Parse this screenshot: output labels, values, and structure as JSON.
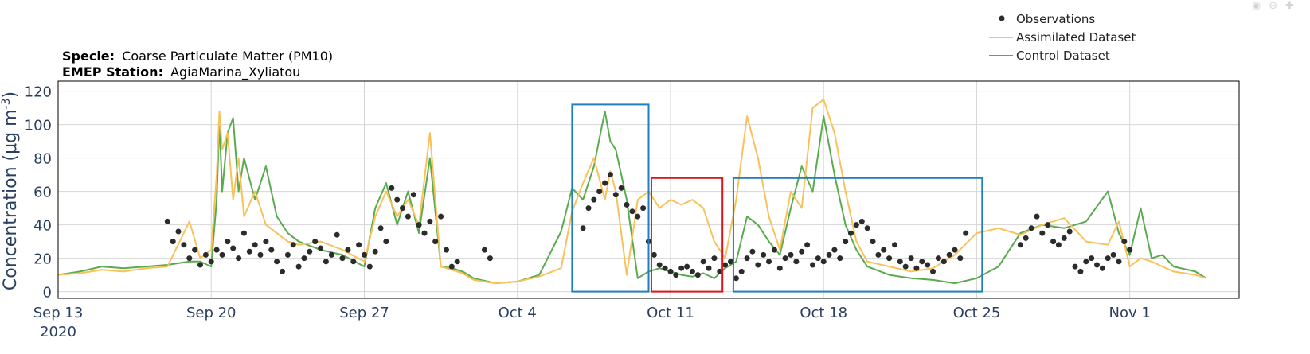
{
  "header": {
    "specie_label": "Specie:",
    "specie_value": "Coarse Particulate Matter (PM10)",
    "station_label": "EMEP Station:",
    "station_value": "AgiaMarina_Xyliatou"
  },
  "modebar": {
    "icons": [
      "camera-icon",
      "zoom-icon",
      "pan-icon",
      "home-icon"
    ]
  },
  "colors": {
    "observations": "#2b2b2b",
    "assimilated": "#f9c15a",
    "control": "#5aab4f",
    "highlight_blue": "#1f7fbf",
    "highlight_red": "#e0141e",
    "grid": "#d6d6d6",
    "axis_text": "#2a3f5f"
  },
  "chart_data": {
    "type": "line",
    "title": "",
    "xlabel": "",
    "ylabel": "Concentration (μg m⁻³)",
    "ylabel_main": "Concentration (μg m",
    "ylabel_sup": "-3",
    "ylabel_end": ")",
    "xlim": [
      "2020-09-13",
      "2020-11-06"
    ],
    "ylim": [
      -4,
      126
    ],
    "x_ticks": [
      {
        "date": "2020-09-13",
        "label": "Sep 13",
        "sublabel": "2020"
      },
      {
        "date": "2020-09-20",
        "label": "Sep 20"
      },
      {
        "date": "2020-09-27",
        "label": "Sep 27"
      },
      {
        "date": "2020-10-04",
        "label": "Oct 4"
      },
      {
        "date": "2020-10-11",
        "label": "Oct 11"
      },
      {
        "date": "2020-10-18",
        "label": "Oct 18"
      },
      {
        "date": "2020-10-25",
        "label": "Oct 25"
      },
      {
        "date": "2020-11-01",
        "label": "Nov 1"
      }
    ],
    "y_ticks": [
      0,
      20,
      40,
      60,
      80,
      100,
      120
    ],
    "grid": true,
    "legend_position": "top-right",
    "legend": [
      {
        "name": "Observations",
        "style": "marker"
      },
      {
        "name": "Assimilated Dataset",
        "style": "line"
      },
      {
        "name": "Control Dataset",
        "style": "line"
      }
    ],
    "highlight_boxes": [
      {
        "color": "blue",
        "x0": "2020-10-06 12:00",
        "x1": "2020-10-10 00:00",
        "y0": 0,
        "y1": 112
      },
      {
        "color": "red",
        "x0": "2020-10-10 03:00",
        "x1": "2020-10-13 09:00",
        "y0": 0,
        "y1": 68
      },
      {
        "color": "blue",
        "x0": "2020-10-13 21:00",
        "x1": "2020-10-25 06:00",
        "y0": 0,
        "y1": 68
      }
    ],
    "series": [
      {
        "name": "Control Dataset",
        "x": [
          "2020-09-13",
          "2020-09-14",
          "2020-09-15",
          "2020-09-16",
          "2020-09-17",
          "2020-09-18",
          "2020-09-19",
          "2020-09-19 12:00",
          "2020-09-20",
          "2020-09-20 06:00",
          "2020-09-20 09:00",
          "2020-09-20 12:00",
          "2020-09-20 18:00",
          "2020-09-21",
          "2020-09-21 06:00",
          "2020-09-21 12:00",
          "2020-09-22",
          "2020-09-22 12:00",
          "2020-09-23",
          "2020-09-23 12:00",
          "2020-09-24",
          "2020-09-25",
          "2020-09-26",
          "2020-09-27",
          "2020-09-27 12:00",
          "2020-09-28",
          "2020-09-28 12:00",
          "2020-09-29",
          "2020-09-29 12:00",
          "2020-09-30",
          "2020-09-30 12:00",
          "2020-10-01",
          "2020-10-01 12:00",
          "2020-10-02",
          "2020-10-03",
          "2020-10-04",
          "2020-10-05",
          "2020-10-06",
          "2020-10-06 12:00",
          "2020-10-07",
          "2020-10-07 12:00",
          "2020-10-08",
          "2020-10-08 06:00",
          "2020-10-08 12:00",
          "2020-10-09",
          "2020-10-09 12:00",
          "2020-10-10",
          "2020-10-10 12:00",
          "2020-10-11",
          "2020-10-11 12:00",
          "2020-10-12",
          "2020-10-12 12:00",
          "2020-10-13",
          "2020-10-13 12:00",
          "2020-10-14",
          "2020-10-14 12:00",
          "2020-10-15",
          "2020-10-15 12:00",
          "2020-10-16",
          "2020-10-16 12:00",
          "2020-10-17",
          "2020-10-17 12:00",
          "2020-10-18",
          "2020-10-18 12:00",
          "2020-10-19",
          "2020-10-19 12:00",
          "2020-10-20",
          "2020-10-21",
          "2020-10-22",
          "2020-10-23",
          "2020-10-24",
          "2020-10-25",
          "2020-10-26",
          "2020-10-27",
          "2020-10-28",
          "2020-10-29",
          "2020-10-30",
          "2020-10-31",
          "2020-10-31 12:00",
          "2020-11-01",
          "2020-11-01 12:00",
          "2020-11-02",
          "2020-11-02 12:00",
          "2020-11-03",
          "2020-11-04",
          "2020-11-04 12:00"
        ],
        "values": [
          10,
          12,
          15,
          14,
          15,
          16,
          18,
          18,
          15,
          55,
          102,
          60,
          95,
          104,
          60,
          80,
          55,
          75,
          45,
          35,
          30,
          25,
          22,
          15,
          50,
          65,
          40,
          60,
          35,
          80,
          15,
          14,
          12,
          8,
          5,
          6,
          10,
          36,
          62,
          55,
          75,
          108,
          90,
          85,
          55,
          8,
          12,
          14,
          12,
          10,
          9,
          11,
          8,
          14,
          18,
          45,
          40,
          30,
          22,
          50,
          75,
          60,
          105,
          70,
          40,
          25,
          15,
          10,
          8,
          7,
          5,
          8,
          15,
          35,
          40,
          38,
          42,
          60,
          35,
          22,
          50,
          20,
          22,
          15,
          12,
          8
        ]
      },
      {
        "name": "Assimilated Dataset",
        "x": [
          "2020-09-13",
          "2020-09-14",
          "2020-09-15",
          "2020-09-16",
          "2020-09-17",
          "2020-09-18",
          "2020-09-19",
          "2020-09-19 12:00",
          "2020-09-20",
          "2020-09-20 06:00",
          "2020-09-20 09:00",
          "2020-09-20 12:00",
          "2020-09-20 18:00",
          "2020-09-21",
          "2020-09-21 06:00",
          "2020-09-21 12:00",
          "2020-09-22",
          "2020-09-22 12:00",
          "2020-09-23",
          "2020-09-23 12:00",
          "2020-09-24",
          "2020-09-25",
          "2020-09-26",
          "2020-09-27",
          "2020-09-27 12:00",
          "2020-09-28",
          "2020-09-28 12:00",
          "2020-09-29",
          "2020-09-29 12:00",
          "2020-09-30",
          "2020-09-30 12:00",
          "2020-10-01",
          "2020-10-01 12:00",
          "2020-10-02",
          "2020-10-03",
          "2020-10-04",
          "2020-10-05",
          "2020-10-06",
          "2020-10-06 12:00",
          "2020-10-07",
          "2020-10-07 12:00",
          "2020-10-08",
          "2020-10-08 06:00",
          "2020-10-08 12:00",
          "2020-10-09",
          "2020-10-09 12:00",
          "2020-10-10",
          "2020-10-10 12:00",
          "2020-10-11",
          "2020-10-11 12:00",
          "2020-10-12",
          "2020-10-12 12:00",
          "2020-10-13",
          "2020-10-13 12:00",
          "2020-10-14",
          "2020-10-14 12:00",
          "2020-10-15",
          "2020-10-15 12:00",
          "2020-10-16",
          "2020-10-16 12:00",
          "2020-10-17",
          "2020-10-17 12:00",
          "2020-10-18",
          "2020-10-18 12:00",
          "2020-10-19",
          "2020-10-19 12:00",
          "2020-10-20",
          "2020-10-21",
          "2020-10-22",
          "2020-10-23",
          "2020-10-24",
          "2020-10-25",
          "2020-10-26",
          "2020-10-27",
          "2020-10-28",
          "2020-10-29",
          "2020-10-30",
          "2020-10-31",
          "2020-10-31 12:00",
          "2020-11-01",
          "2020-11-01 12:00",
          "2020-11-02",
          "2020-11-02 12:00",
          "2020-11-03",
          "2020-11-04",
          "2020-11-04 12:00"
        ],
        "values": [
          10,
          11,
          13,
          12,
          14,
          15,
          42,
          20,
          25,
          70,
          108,
          85,
          95,
          55,
          80,
          45,
          60,
          40,
          35,
          30,
          28,
          30,
          25,
          18,
          45,
          60,
          45,
          55,
          40,
          95,
          15,
          13,
          11,
          7,
          5,
          6,
          9,
          14,
          48,
          65,
          80,
          55,
          72,
          60,
          10,
          55,
          60,
          50,
          55,
          52,
          55,
          50,
          30,
          20,
          55,
          105,
          80,
          45,
          25,
          60,
          50,
          110,
          115,
          95,
          60,
          30,
          18,
          15,
          12,
          14,
          22,
          35,
          38,
          34,
          40,
          44,
          30,
          28,
          42,
          15,
          20,
          18,
          15,
          12,
          10,
          8
        ]
      },
      {
        "name": "Observations",
        "x": [
          "2020-09-18",
          "2020-09-18 06:00",
          "2020-09-18 12:00",
          "2020-09-18 18:00",
          "2020-09-19",
          "2020-09-19 06:00",
          "2020-09-19 12:00",
          "2020-09-19 18:00",
          "2020-09-20",
          "2020-09-20 06:00",
          "2020-09-20 12:00",
          "2020-09-20 18:00",
          "2020-09-21",
          "2020-09-21 06:00",
          "2020-09-21 12:00",
          "2020-09-21 18:00",
          "2020-09-22",
          "2020-09-22 06:00",
          "2020-09-22 12:00",
          "2020-09-22 18:00",
          "2020-09-23",
          "2020-09-23 06:00",
          "2020-09-23 12:00",
          "2020-09-23 18:00",
          "2020-09-24",
          "2020-09-24 06:00",
          "2020-09-24 12:00",
          "2020-09-24 18:00",
          "2020-09-25",
          "2020-09-25 06:00",
          "2020-09-25 12:00",
          "2020-09-25 18:00",
          "2020-09-26",
          "2020-09-26 06:00",
          "2020-09-26 12:00",
          "2020-09-26 18:00",
          "2020-09-27",
          "2020-09-27 06:00",
          "2020-09-27 12:00",
          "2020-09-27 18:00",
          "2020-09-28",
          "2020-09-28 06:00",
          "2020-09-28 12:00",
          "2020-09-28 18:00",
          "2020-09-29",
          "2020-09-29 06:00",
          "2020-09-29 12:00",
          "2020-09-29 18:00",
          "2020-09-30",
          "2020-09-30 06:00",
          "2020-09-30 12:00",
          "2020-09-30 18:00",
          "2020-10-01",
          "2020-10-01 06:00",
          "2020-10-02 12:00",
          "2020-10-02 18:00",
          "2020-10-07",
          "2020-10-07 06:00",
          "2020-10-07 12:00",
          "2020-10-07 18:00",
          "2020-10-08",
          "2020-10-08 06:00",
          "2020-10-08 12:00",
          "2020-10-08 18:00",
          "2020-10-09",
          "2020-10-09 06:00",
          "2020-10-09 12:00",
          "2020-10-09 18:00",
          "2020-10-10",
          "2020-10-10 06:00",
          "2020-10-10 12:00",
          "2020-10-10 18:00",
          "2020-10-11",
          "2020-10-11 06:00",
          "2020-10-11 12:00",
          "2020-10-11 18:00",
          "2020-10-12",
          "2020-10-12 06:00",
          "2020-10-12 12:00",
          "2020-10-12 18:00",
          "2020-10-13",
          "2020-10-13 06:00",
          "2020-10-13 12:00",
          "2020-10-13 18:00",
          "2020-10-14",
          "2020-10-14 06:00",
          "2020-10-14 12:00",
          "2020-10-14 18:00",
          "2020-10-15",
          "2020-10-15 06:00",
          "2020-10-15 12:00",
          "2020-10-15 18:00",
          "2020-10-16",
          "2020-10-16 06:00",
          "2020-10-16 12:00",
          "2020-10-16 18:00",
          "2020-10-17",
          "2020-10-17 06:00",
          "2020-10-17 12:00",
          "2020-10-17 18:00",
          "2020-10-18",
          "2020-10-18 06:00",
          "2020-10-18 12:00",
          "2020-10-18 18:00",
          "2020-10-19",
          "2020-10-19 06:00",
          "2020-10-19 12:00",
          "2020-10-19 18:00",
          "2020-10-20",
          "2020-10-20 06:00",
          "2020-10-20 12:00",
          "2020-10-20 18:00",
          "2020-10-21",
          "2020-10-21 06:00",
          "2020-10-21 12:00",
          "2020-10-21 18:00",
          "2020-10-22",
          "2020-10-22 06:00",
          "2020-10-22 12:00",
          "2020-10-22 18:00",
          "2020-10-23",
          "2020-10-23 06:00",
          "2020-10-23 12:00",
          "2020-10-23 18:00",
          "2020-10-24",
          "2020-10-24 06:00",
          "2020-10-24 12:00",
          "2020-10-27",
          "2020-10-27 06:00",
          "2020-10-27 12:00",
          "2020-10-27 18:00",
          "2020-10-28",
          "2020-10-28 06:00",
          "2020-10-28 12:00",
          "2020-10-28 18:00",
          "2020-10-29",
          "2020-10-29 06:00",
          "2020-10-29 12:00",
          "2020-10-29 18:00",
          "2020-10-30",
          "2020-10-30 06:00",
          "2020-10-30 12:00",
          "2020-10-30 18:00",
          "2020-10-31",
          "2020-10-31 06:00",
          "2020-10-31 12:00",
          "2020-10-31 18:00",
          "2020-11-01"
        ],
        "values": [
          42,
          30,
          36,
          28,
          20,
          25,
          16,
          22,
          18,
          25,
          22,
          30,
          26,
          20,
          35,
          24,
          28,
          22,
          30,
          25,
          18,
          12,
          22,
          28,
          15,
          20,
          24,
          30,
          26,
          18,
          22,
          34,
          20,
          25,
          18,
          28,
          22,
          15,
          24,
          38,
          30,
          62,
          55,
          50,
          45,
          58,
          40,
          35,
          42,
          30,
          45,
          25,
          15,
          18,
          25,
          20,
          38,
          50,
          55,
          60,
          65,
          70,
          58,
          62,
          52,
          48,
          45,
          50,
          30,
          22,
          16,
          14,
          12,
          10,
          14,
          15,
          12,
          10,
          18,
          14,
          20,
          12,
          16,
          18,
          8,
          12,
          20,
          24,
          16,
          22,
          18,
          25,
          14,
          20,
          22,
          18,
          24,
          28,
          16,
          20,
          18,
          22,
          25,
          20,
          30,
          35,
          40,
          42,
          38,
          30,
          22,
          25,
          20,
          28,
          18,
          15,
          20,
          14,
          18,
          16,
          12,
          20,
          18,
          22,
          25,
          20,
          35,
          28,
          32,
          38,
          45,
          35,
          40,
          30,
          28,
          32,
          36,
          15,
          12,
          18,
          20,
          16,
          14,
          20,
          22,
          18,
          30,
          25
        ]
      }
    ]
  }
}
